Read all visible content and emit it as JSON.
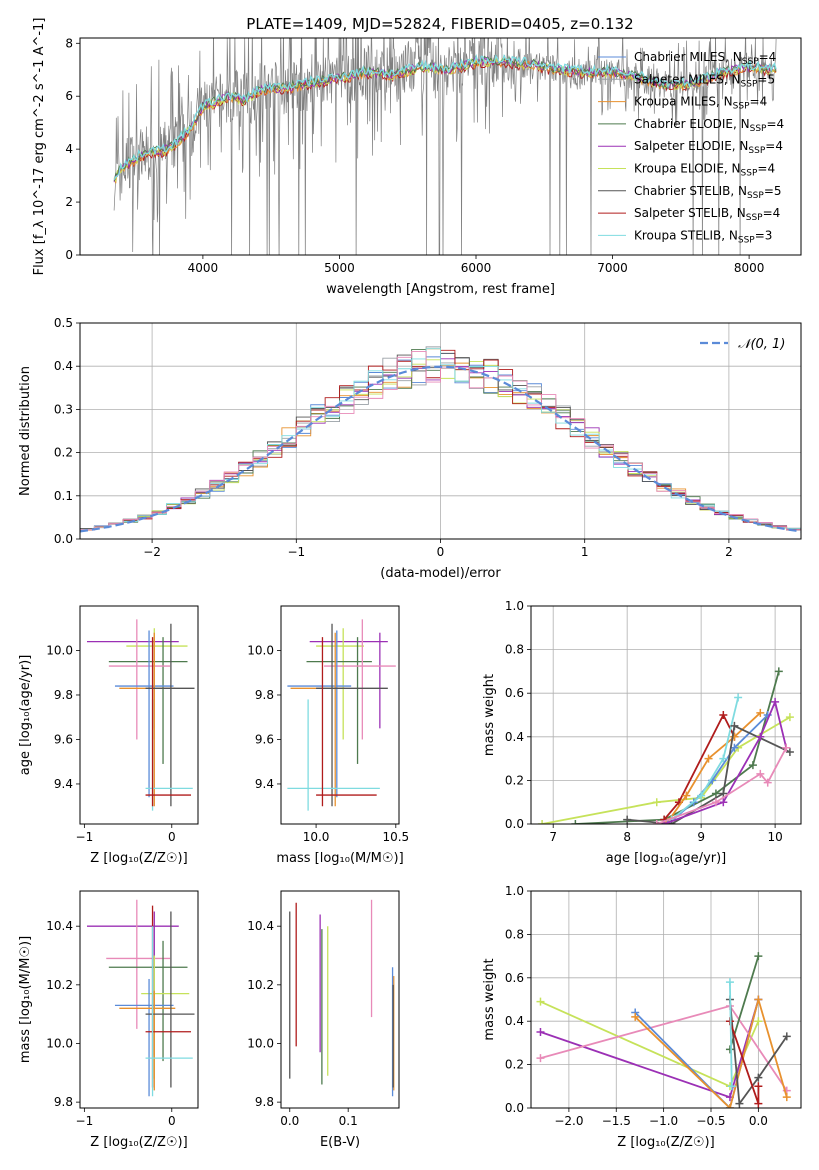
{
  "figure": {
    "title": "PLATE=1409, MJD=52824, FIBERID=0405, z=0.132"
  },
  "colors": {
    "chabrier_miles": "#5b8bd8",
    "salpeter_miles": "#9aa0a6",
    "kroupa_miles": "#e8912e",
    "chabrier_elodie": "#4e7a4e",
    "salpeter_elodie": "#9b30b5",
    "kroupa_elodie": "#c6e25a",
    "chabrier_stelib": "#555555",
    "salpeter_stelib": "#b01c1c",
    "kroupa_stelib": "#7fdbe0",
    "pink": "#e88ab8",
    "gaussian": "#5b8bd8"
  },
  "chart_data": [
    {
      "id": "spectrum",
      "type": "line",
      "xlabel": "wavelength [Angstrom, rest frame]",
      "ylabel": "Flux [f_λ 10^-17 erg cm^-2 s^-1 A^-1]",
      "xlim": [
        3100,
        8380
      ],
      "ylim": [
        0,
        8.2
      ],
      "xticks": [
        "4000",
        "5000",
        "6000",
        "7000",
        "8000"
      ],
      "yticks": [
        "0",
        "2",
        "4",
        "6",
        "8"
      ],
      "legend_position": "top-right",
      "legend": [
        {
          "label": "Chabrier MILES, N",
          "sub": "SSP",
          "tail": "=4",
          "color_key": "chabrier_miles"
        },
        {
          "label": "Salpeter MILES, N",
          "sub": "SSP",
          "tail": "=5",
          "color_key": "salpeter_miles"
        },
        {
          "label": "Kroupa MILES, N",
          "sub": "SSP",
          "tail": "=4",
          "color_key": "kroupa_miles"
        },
        {
          "label": "Chabrier ELODIE, N",
          "sub": "SSP",
          "tail": "=4",
          "color_key": "chabrier_elodie"
        },
        {
          "label": "Salpeter ELODIE, N",
          "sub": "SSP",
          "tail": "=4",
          "color_key": "salpeter_elodie"
        },
        {
          "label": "Kroupa ELODIE, N",
          "sub": "SSP",
          "tail": "=4",
          "color_key": "kroupa_elodie"
        },
        {
          "label": "Chabrier STELIB, N",
          "sub": "SSP",
          "tail": "=5",
          "color_key": "chabrier_stelib"
        },
        {
          "label": "Salpeter STELIB, N",
          "sub": "SSP",
          "tail": "=4",
          "color_key": "salpeter_stelib"
        },
        {
          "label": "Kroupa STELIB, N",
          "sub": "SSP",
          "tail": "=3",
          "color_key": "kroupa_stelib"
        }
      ],
      "continuum": {
        "x": [
          3350,
          3400,
          3500,
          3600,
          3700,
          3800,
          3900,
          4000,
          4100,
          4200,
          4300,
          4400,
          4500,
          4600,
          4800,
          5000,
          5200,
          5400,
          5600,
          5800,
          6000,
          6200,
          6400,
          6600,
          6800,
          7000,
          7200,
          7400,
          7600,
          7800,
          8000,
          8200
        ],
        "y": [
          2.8,
          3.3,
          3.6,
          3.9,
          3.9,
          4.2,
          4.7,
          5.6,
          5.8,
          6.0,
          5.8,
          6.2,
          6.3,
          6.3,
          6.5,
          6.7,
          6.9,
          6.8,
          7.1,
          7.0,
          7.3,
          7.3,
          7.2,
          7.0,
          6.9,
          6.9,
          6.7,
          6.4,
          6.5,
          6.9,
          7.1,
          7.0
        ]
      }
    },
    {
      "id": "residuals",
      "type": "histogram",
      "xlabel": "(data-model)/error",
      "ylabel": "Normed distribution",
      "xlim": [
        -2.5,
        2.5
      ],
      "ylim": [
        0,
        0.5
      ],
      "xticks": [
        "−2",
        "−1",
        "0",
        "1",
        "2"
      ],
      "yticks": [
        "0.0",
        "0.1",
        "0.2",
        "0.3",
        "0.4",
        "0.5"
      ],
      "grid": true,
      "legend_position": "top-right",
      "legend_label": "𝒩(0, 1)",
      "bin_width": 0.1
    },
    {
      "id": "age_vs_Z",
      "type": "scatter",
      "xlabel": "Z [log₁₀(Z/Z☉)]",
      "ylabel": "age  [log₁₀(age/yr)]",
      "xlim": [
        -1.05,
        0.3
      ],
      "ylim": [
        9.22,
        10.2
      ],
      "xticks": [
        "−1",
        "0"
      ],
      "yticks": [
        "9.4",
        "9.6",
        "9.8",
        "10.0"
      ],
      "points": [
        {
          "c": "salpeter_elodie",
          "x": -0.2,
          "y": 10.04,
          "ex": [
            -0.97,
            0.08
          ],
          "ey": [
            9.65,
            10.08
          ]
        },
        {
          "c": "kroupa_elodie",
          "x": -0.2,
          "y": 10.02,
          "ex": [
            -0.52,
            0.18
          ],
          "ey": [
            9.6,
            10.1
          ]
        },
        {
          "c": "chabrier_elodie",
          "x": -0.1,
          "y": 9.95,
          "ex": [
            -0.72,
            0.18
          ],
          "ey": [
            9.49,
            10.06
          ]
        },
        {
          "c": "pink",
          "x": -0.4,
          "y": 9.93,
          "ex": [
            -0.72,
            -0.02
          ],
          "ey": [
            9.6,
            10.14
          ]
        },
        {
          "c": "chabrier_miles",
          "x": -0.26,
          "y": 9.84,
          "ex": [
            -0.65,
            0.02
          ],
          "ey": [
            9.34,
            10.09
          ]
        },
        {
          "c": "kroupa_miles",
          "x": -0.2,
          "y": 9.83,
          "ex": [
            -0.6,
            0.04
          ],
          "ey": [
            9.3,
            10.08
          ]
        },
        {
          "c": "chabrier_stelib",
          "x": -0.01,
          "y": 9.83,
          "ex": [
            -0.3,
            0.26
          ],
          "ey": [
            9.3,
            10.12
          ]
        },
        {
          "c": "kroupa_stelib",
          "x": -0.22,
          "y": 9.38,
          "ex": [
            -0.3,
            0.24
          ],
          "ey": [
            9.28,
            9.78
          ]
        },
        {
          "c": "salpeter_stelib",
          "x": -0.22,
          "y": 9.35,
          "ex": [
            -0.3,
            0.22
          ],
          "ey": [
            9.3,
            10.06
          ]
        }
      ]
    },
    {
      "id": "age_vs_mass",
      "type": "scatter",
      "xlabel": "mass [log₁₀(M/M☉)]",
      "ylabel": "",
      "xlim": [
        9.78,
        10.52
      ],
      "ylim": [
        9.22,
        10.2
      ],
      "xticks": [
        "10.0",
        "10.5"
      ],
      "yticks": [
        "9.4",
        "9.6",
        "9.8",
        "10.0"
      ],
      "points": [
        {
          "c": "salpeter_elodie",
          "x": 10.4,
          "y": 10.04,
          "ex": [
            9.96,
            10.45
          ],
          "ey": [
            9.65,
            10.08
          ]
        },
        {
          "c": "kroupa_elodie",
          "x": 10.17,
          "y": 10.02,
          "ex": [
            10.0,
            10.3
          ],
          "ey": [
            9.6,
            10.1
          ]
        },
        {
          "c": "chabrier_elodie",
          "x": 10.26,
          "y": 9.95,
          "ex": [
            9.94,
            10.35
          ],
          "ey": [
            9.49,
            10.06
          ]
        },
        {
          "c": "pink",
          "x": 10.29,
          "y": 9.93,
          "ex": [
            10.05,
            10.5
          ],
          "ey": [
            9.6,
            10.14
          ]
        },
        {
          "c": "chabrier_miles",
          "x": 10.13,
          "y": 9.84,
          "ex": [
            9.82,
            10.22
          ],
          "ey": [
            9.34,
            10.09
          ]
        },
        {
          "c": "kroupa_miles",
          "x": 10.12,
          "y": 9.83,
          "ex": [
            9.84,
            10.18
          ],
          "ey": [
            9.3,
            10.08
          ]
        },
        {
          "c": "chabrier_stelib",
          "x": 10.1,
          "y": 9.83,
          "ex": [
            10.0,
            10.45
          ],
          "ey": [
            9.3,
            10.12
          ]
        },
        {
          "c": "kroupa_stelib",
          "x": 9.95,
          "y": 9.38,
          "ex": [
            9.82,
            10.4
          ],
          "ey": [
            9.28,
            9.78
          ]
        },
        {
          "c": "salpeter_stelib",
          "x": 10.04,
          "y": 9.35,
          "ex": [
            10.0,
            10.38
          ],
          "ey": [
            9.3,
            10.06
          ]
        }
      ]
    },
    {
      "id": "mass_weight_vs_age",
      "type": "line",
      "xlabel": "age  [log₁₀(age/yr)]",
      "ylabel": "mass weight",
      "xlim": [
        6.7,
        10.35
      ],
      "ylim": [
        0,
        1
      ],
      "xticks": [
        "7",
        "8",
        "9",
        "10"
      ],
      "yticks": [
        "0.0",
        "0.2",
        "0.4",
        "0.6",
        "0.8",
        "1.0"
      ],
      "grid": true,
      "series": [
        {
          "c": "kroupa_elodie",
          "x": [
            6.85,
            8.4,
            9.0,
            9.5,
            10.2
          ],
          "y": [
            0.0,
            0.1,
            0.12,
            0.35,
            0.49
          ]
        },
        {
          "c": "chabrier_elodie",
          "x": [
            7.3,
            8.5,
            9.2,
            9.7,
            10.05
          ],
          "y": [
            0.0,
            0.02,
            0.14,
            0.27,
            0.7
          ]
        },
        {
          "c": "salpeter_stelib",
          "x": [
            8.5,
            8.7,
            9.3,
            9.45
          ],
          "y": [
            0.02,
            0.1,
            0.5,
            0.4
          ]
        },
        {
          "c": "kroupa_miles",
          "x": [
            8.55,
            8.8,
            9.1,
            9.45,
            9.8
          ],
          "y": [
            0.01,
            0.13,
            0.3,
            0.4,
            0.51
          ]
        },
        {
          "c": "chabrier_miles",
          "x": [
            8.55,
            8.9,
            9.15,
            9.45,
            9.9
          ],
          "y": [
            0.0,
            0.1,
            0.2,
            0.35,
            0.5
          ]
        },
        {
          "c": "kroupa_stelib",
          "x": [
            8.6,
            9.0,
            9.3,
            9.5
          ],
          "y": [
            0.02,
            0.13,
            0.3,
            0.58
          ]
        },
        {
          "c": "chabrier_stelib",
          "x": [
            8.0,
            8.6,
            9.3,
            9.45,
            10.2
          ],
          "y": [
            0.02,
            0.0,
            0.14,
            0.45,
            0.33
          ]
        },
        {
          "c": "salpeter_elodie",
          "x": [
            8.5,
            9.3,
            9.8,
            10.0,
            10.15
          ],
          "y": [
            0.0,
            0.1,
            0.4,
            0.56,
            0.35
          ]
        },
        {
          "c": "pink",
          "x": [
            8.4,
            9.2,
            9.8,
            9.9,
            10.15
          ],
          "y": [
            0.0,
            0.1,
            0.23,
            0.19,
            0.35
          ]
        }
      ]
    },
    {
      "id": "mass_vs_Z",
      "type": "scatter",
      "xlabel": "Z [log₁₀(Z/Z☉)]",
      "ylabel": "mass [log₁₀(M/M☉)]",
      "xlim": [
        -1.05,
        0.3
      ],
      "ylim": [
        9.78,
        10.52
      ],
      "xticks": [
        "−1",
        "0"
      ],
      "yticks": [
        "9.8",
        "10.0",
        "10.2",
        "10.4"
      ],
      "points": [
        {
          "c": "salpeter_elodie",
          "x": -0.2,
          "y": 10.4,
          "ex": [
            -0.97,
            0.08
          ],
          "ey": [
            9.96,
            10.45
          ]
        },
        {
          "c": "pink",
          "x": -0.4,
          "y": 10.29,
          "ex": [
            -0.75,
            -0.02
          ],
          "ey": [
            10.05,
            10.49
          ]
        },
        {
          "c": "chabrier_elodie",
          "x": -0.1,
          "y": 10.26,
          "ex": [
            -0.72,
            0.18
          ],
          "ey": [
            9.94,
            10.35
          ]
        },
        {
          "c": "kroupa_elodie",
          "x": -0.2,
          "y": 10.17,
          "ex": [
            -0.35,
            0.2
          ],
          "ey": [
            9.88,
            10.3
          ]
        },
        {
          "c": "chabrier_miles",
          "x": -0.26,
          "y": 10.13,
          "ex": [
            -0.65,
            0.02
          ],
          "ey": [
            9.82,
            10.22
          ]
        },
        {
          "c": "kroupa_miles",
          "x": -0.2,
          "y": 10.12,
          "ex": [
            -0.6,
            0.04
          ],
          "ey": [
            9.84,
            10.18
          ]
        },
        {
          "c": "chabrier_stelib",
          "x": -0.01,
          "y": 10.1,
          "ex": [
            -0.3,
            0.26
          ],
          "ey": [
            9.85,
            10.45
          ]
        },
        {
          "c": "salpeter_stelib",
          "x": -0.22,
          "y": 10.04,
          "ex": [
            -0.3,
            0.22
          ],
          "ey": [
            9.85,
            10.47
          ]
        },
        {
          "c": "kroupa_stelib",
          "x": -0.22,
          "y": 9.95,
          "ex": [
            -0.3,
            0.24
          ],
          "ey": [
            9.82,
            10.4
          ]
        }
      ]
    },
    {
      "id": "mass_vs_ebv",
      "type": "scatter",
      "xlabel": "E(B-V)",
      "ylabel": "",
      "xlim": [
        -0.015,
        0.187
      ],
      "ylim": [
        9.78,
        10.52
      ],
      "xticks": [
        "0.0",
        "0.1"
      ],
      "yticks": [
        "9.8",
        "10.0",
        "10.2",
        "10.4"
      ],
      "bars": [
        {
          "c": "chabrier_stelib",
          "x": 0.0,
          "ey": [
            9.88,
            10.45
          ]
        },
        {
          "c": "salpeter_stelib",
          "x": 0.011,
          "ey": [
            9.99,
            10.48
          ]
        },
        {
          "c": "chabrier_elodie",
          "x": 0.055,
          "ey": [
            9.86,
            10.39
          ]
        },
        {
          "c": "salpeter_elodie",
          "x": 0.052,
          "ey": [
            9.97,
            10.44
          ]
        },
        {
          "c": "kroupa_elodie",
          "x": 0.065,
          "ey": [
            9.89,
            10.4
          ]
        },
        {
          "c": "pink",
          "x": 0.14,
          "ey": [
            10.09,
            10.49
          ]
        },
        {
          "c": "kroupa_miles",
          "x": 0.178,
          "ey": [
            9.84,
            10.23
          ]
        },
        {
          "c": "chabrier_miles",
          "x": 0.176,
          "ey": [
            9.82,
            10.26
          ]
        },
        {
          "c": "chabrier_stelib",
          "x": 0.177,
          "ey": [
            9.85,
            10.2
          ]
        }
      ]
    },
    {
      "id": "mass_weight_vs_Z",
      "type": "line",
      "xlabel": "Z [log₁₀(Z/Z☉)]",
      "ylabel": "mass weight",
      "xlim": [
        -2.4,
        0.45
      ],
      "ylim": [
        0,
        1
      ],
      "xticks": [
        "−2.0",
        "−1.5",
        "−1.0",
        "−0.5",
        "0.0"
      ],
      "yticks": [
        "0.0",
        "0.2",
        "0.4",
        "0.6",
        "0.8",
        "1.0"
      ],
      "grid": true,
      "series": [
        {
          "c": "kroupa_elodie",
          "x": [
            -2.3,
            -0.3,
            0.0
          ],
          "y": [
            0.49,
            0.1,
            0.4
          ]
        },
        {
          "c": "salpeter_elodie",
          "x": [
            -2.3,
            -0.3,
            0.0
          ],
          "y": [
            0.35,
            0.05,
            0.5
          ]
        },
        {
          "c": "pink",
          "x": [
            -2.3,
            -0.3,
            0.3
          ],
          "y": [
            0.23,
            0.47,
            0.08
          ]
        },
        {
          "c": "chabrier_miles",
          "x": [
            -1.3,
            -0.3,
            0.0
          ],
          "y": [
            0.44,
            0.0,
            0.5
          ]
        },
        {
          "c": "kroupa_miles",
          "x": [
            -1.3,
            -0.3,
            0.0,
            0.3
          ],
          "y": [
            0.42,
            0.0,
            0.5,
            0.05
          ]
        },
        {
          "c": "chabrier_elodie",
          "x": [
            -0.3,
            0.0
          ],
          "y": [
            0.27,
            0.7
          ]
        },
        {
          "c": "chabrier_stelib",
          "x": [
            -0.3,
            -0.2,
            0.0,
            0.3
          ],
          "y": [
            0.5,
            0.02,
            0.14,
            0.33
          ]
        },
        {
          "c": "salpeter_stelib",
          "x": [
            -0.3,
            0.0,
            0.0
          ],
          "y": [
            0.4,
            0.02,
            0.1
          ]
        },
        {
          "c": "kroupa_stelib",
          "x": [
            -0.3,
            -0.28
          ],
          "y": [
            0.58,
            0.1
          ]
        }
      ]
    }
  ]
}
